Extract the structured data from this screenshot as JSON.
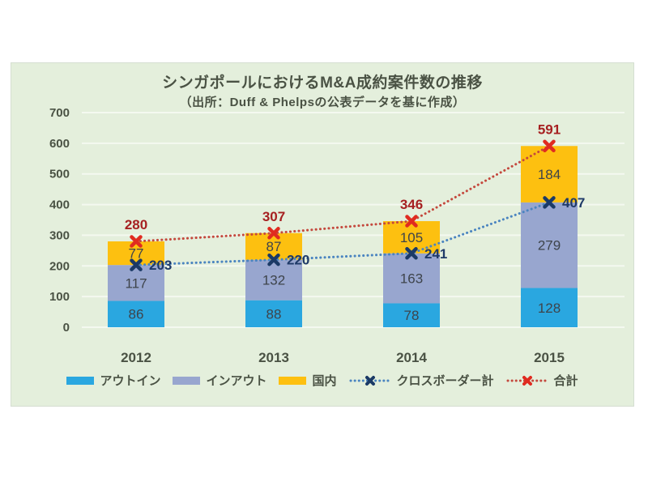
{
  "panel": {
    "background": "#e4efdc",
    "border_color": "#d5ded1"
  },
  "chart_data": {
    "type": "bar",
    "subtype": "stacked-bars-with-dotted-lines",
    "title": "シンガポールにおけるM&A成約案件数の推移",
    "subtitle": "（出所：Duff & Phelpsの公表データを基に作成）",
    "categories": [
      "2012",
      "2013",
      "2014",
      "2015"
    ],
    "bar_series": [
      {
        "name": "アウトイン",
        "color": "#2aa7e0",
        "values": [
          86,
          88,
          78,
          128
        ]
      },
      {
        "name": "インアウト",
        "color": "#98a6cf",
        "values": [
          117,
          132,
          163,
          279
        ]
      },
      {
        "name": "国内",
        "color": "#fdc010",
        "values": [
          77,
          87,
          105,
          184
        ]
      }
    ],
    "line_series": [
      {
        "name": "クロスボーダー計",
        "line_color": "#4a84c0",
        "marker_color": "#1b3a66",
        "label_color": "#1f3a68",
        "values": [
          203,
          220,
          241,
          407
        ],
        "label_side": "right"
      },
      {
        "name": "合計",
        "line_color": "#c4483d",
        "marker_color": "#e02b20",
        "label_color": "#a62021",
        "values": [
          280,
          307,
          346,
          591
        ],
        "label_side": "above"
      }
    ],
    "ylim": [
      0,
      700
    ],
    "yticks": [
      0,
      100,
      200,
      300,
      400,
      500,
      600,
      700
    ],
    "grid": true,
    "gridline_color": "#f4f9f0",
    "segment_label_color": "#3e444b",
    "axis_label_color": "#4a5244",
    "legend_position": "bottom"
  }
}
